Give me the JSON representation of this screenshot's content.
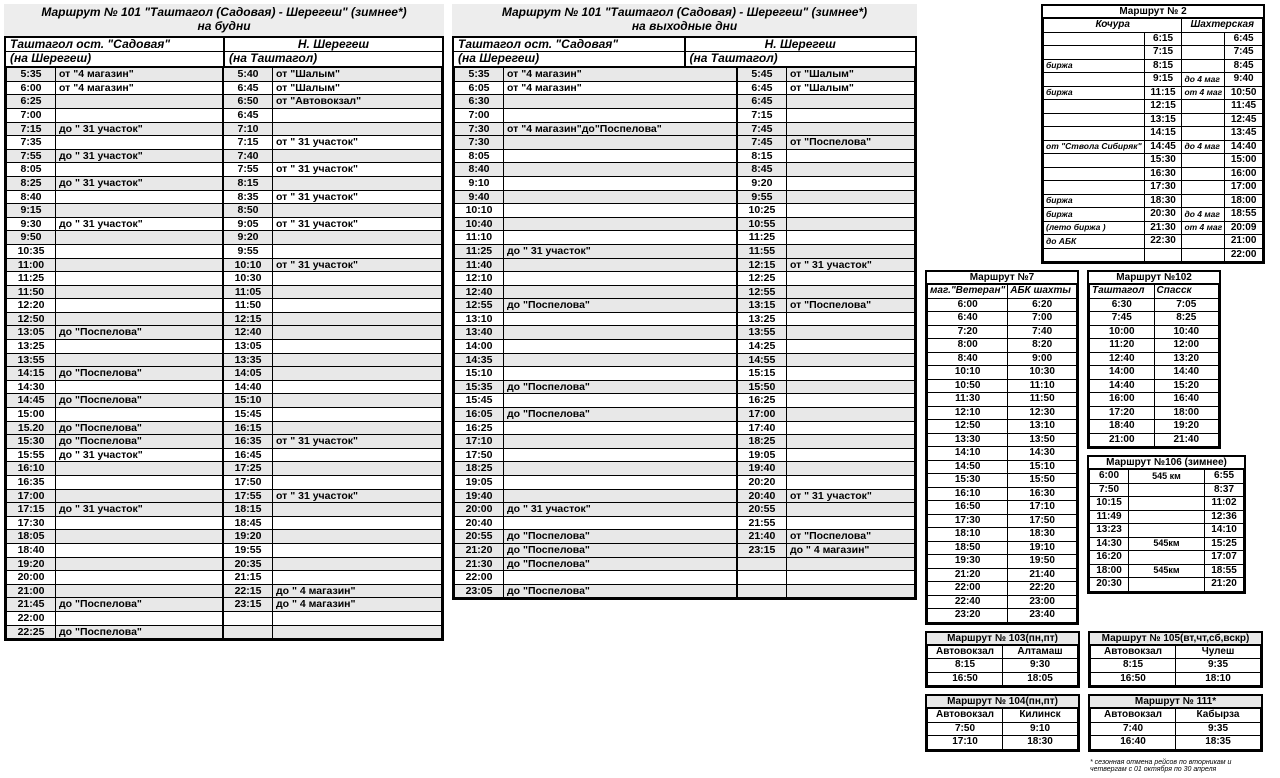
{
  "route101_weekday": {
    "title": "Маршрут № 101 \"Таштагол (Садовая) - Шерегеш\" (зимнее*)\nна будни",
    "left_head1": "Таштагол ост. \"Садовая\"",
    "left_head2": "(на Шерегеш)",
    "right_head1": "Н. Шерегеш",
    "right_head2": "(на Таштагол)",
    "rows": [
      {
        "lt": "5:35",
        "ln": "от \"4 магазин\"",
        "rt": "5:40",
        "rn": "от \"Шалым\"",
        "sh": true
      },
      {
        "lt": "6:00",
        "ln": "от \"4 магазин\"",
        "rt": "6:45",
        "rn": "от \"Шалым\"",
        "sh": false
      },
      {
        "lt": "6:25",
        "ln": "",
        "rt": "6:50",
        "rn": "от \"Автовокзал\"",
        "sh": true
      },
      {
        "lt": "7:00",
        "ln": "",
        "rt": "6:45",
        "rn": "",
        "sh": false
      },
      {
        "lt": "7:15",
        "ln": "до \" 31 участок\"",
        "rt": "7:10",
        "rn": "",
        "sh": true
      },
      {
        "lt": "7:35",
        "ln": "",
        "rt": "7:15",
        "rn": "от \" 31 участок\"",
        "sh": false
      },
      {
        "lt": "7:55",
        "ln": "до \" 31 участок\"",
        "rt": "7:40",
        "rn": "",
        "sh": true
      },
      {
        "lt": "8:05",
        "ln": "",
        "rt": "7:55",
        "rn": "от \" 31 участок\"",
        "sh": false
      },
      {
        "lt": "8:25",
        "ln": "до \" 31 участок\"",
        "rt": "8:15",
        "rn": "",
        "sh": true
      },
      {
        "lt": "8:40",
        "ln": "",
        "rt": "8:35",
        "rn": "от \" 31 участок\"",
        "sh": false
      },
      {
        "lt": "9:15",
        "ln": "",
        "rt": "8:50",
        "rn": "",
        "sh": true
      },
      {
        "lt": "9:30",
        "ln": "до \" 31 участок\"",
        "rt": "9:05",
        "rn": "от \" 31 участок\"",
        "sh": false
      },
      {
        "lt": "9:50",
        "ln": "",
        "rt": "9:20",
        "rn": "",
        "sh": true
      },
      {
        "lt": "10:35",
        "ln": "",
        "rt": "9:55",
        "rn": "",
        "sh": false
      },
      {
        "lt": "11:00",
        "ln": "",
        "rt": "10:10",
        "rn": "от \" 31 участок\"",
        "sh": true
      },
      {
        "lt": "11:25",
        "ln": "",
        "rt": "10:30",
        "rn": "",
        "sh": false
      },
      {
        "lt": "11:50",
        "ln": "",
        "rt": "11:05",
        "rn": "",
        "sh": true
      },
      {
        "lt": "12:20",
        "ln": "",
        "rt": "11:50",
        "rn": "",
        "sh": false
      },
      {
        "lt": "12:50",
        "ln": "",
        "rt": "12:15",
        "rn": "",
        "sh": true
      },
      {
        "lt": "13:05",
        "ln": "до \"Поспелова\"",
        "rt": "12:40",
        "rn": "",
        "sh": true
      },
      {
        "lt": "13:25",
        "ln": "",
        "rt": "13:05",
        "rn": "",
        "sh": false
      },
      {
        "lt": "13:55",
        "ln": "",
        "rt": "13:35",
        "rn": "",
        "sh": true
      },
      {
        "lt": "14:15",
        "ln": "до \"Поспелова\"",
        "rt": "14:05",
        "rn": "",
        "sh": true
      },
      {
        "lt": "14:30",
        "ln": "",
        "rt": "14:40",
        "rn": "",
        "sh": false
      },
      {
        "lt": "14:45",
        "ln": "до \"Поспелова\"",
        "rt": "15:10",
        "rn": "",
        "sh": true
      },
      {
        "lt": "15:00",
        "ln": "",
        "rt": "15:45",
        "rn": "",
        "sh": false
      },
      {
        "lt": "15.20",
        "ln": "до \"Поспелова\"",
        "rt": "16:15",
        "rn": "",
        "sh": true
      },
      {
        "lt": "15:30",
        "ln": "до \"Поспелова\"",
        "rt": "16:35",
        "rn": "от \" 31 участок\"",
        "sh": true
      },
      {
        "lt": "15:55",
        "ln": "до \" 31 участок\"",
        "rt": "16:45",
        "rn": "",
        "sh": false
      },
      {
        "lt": "16:10",
        "ln": "",
        "rt": "17:25",
        "rn": "",
        "sh": true
      },
      {
        "lt": "16:35",
        "ln": "",
        "rt": "17:50",
        "rn": "",
        "sh": false
      },
      {
        "lt": "17:00",
        "ln": "",
        "rt": "17:55",
        "rn": "от \" 31 участок\"",
        "sh": true
      },
      {
        "lt": "17:15",
        "ln": "до \" 31 участок\"",
        "rt": "18:15",
        "rn": "",
        "sh": true
      },
      {
        "lt": "17:30",
        "ln": "",
        "rt": "18:45",
        "rn": "",
        "sh": false
      },
      {
        "lt": "18:05",
        "ln": "",
        "rt": "19:20",
        "rn": "",
        "sh": true
      },
      {
        "lt": "18:40",
        "ln": "",
        "rt": "19:55",
        "rn": "",
        "sh": false
      },
      {
        "lt": "19:20",
        "ln": "",
        "rt": "20:35",
        "rn": "",
        "sh": true
      },
      {
        "lt": "20:00",
        "ln": "",
        "rt": "21:15",
        "rn": "",
        "sh": false
      },
      {
        "lt": "21:00",
        "ln": "",
        "rt": "22:15",
        "rn": "до \" 4 магазин\"",
        "sh": true
      },
      {
        "lt": "21:45",
        "ln": "до \"Поспелова\"",
        "rt": "23:15",
        "rn": "до \" 4 магазин\"",
        "sh": true
      },
      {
        "lt": "22:00",
        "ln": "",
        "rt": "",
        "rn": "",
        "sh": false
      },
      {
        "lt": "22:25",
        "ln": "до \"Поспелова\"",
        "rt": "",
        "rn": "",
        "sh": true
      }
    ]
  },
  "route101_weekend": {
    "title": "Маршрут № 101 \"Таштагол (Садовая) - Шерегеш\" (зимнее*)\nна выходные дни",
    "left_head1": "Таштагол ост. \"Садовая\"",
    "left_head2": "(на Шерегеш)",
    "right_head1": "Н. Шерегеш",
    "right_head2": "(на Таштагол)",
    "rows": [
      {
        "lt": "5:35",
        "ln": "от \"4 магазин\"",
        "rt": "5:45",
        "rn": "от \"Шалым\"",
        "sh": true
      },
      {
        "lt": "6:05",
        "ln": "от \"4 магазин\"",
        "rt": "6:45",
        "rn": "от \"Шалым\"",
        "sh": false
      },
      {
        "lt": "6:30",
        "ln": "",
        "rt": "6:45",
        "rn": "",
        "sh": true
      },
      {
        "lt": "7:00",
        "ln": "",
        "rt": "7:15",
        "rn": "",
        "sh": false
      },
      {
        "lt": "7:30",
        "ln": "от \"4 магазин\"до\"Поспелова\"",
        "rt": "7:45",
        "rn": "",
        "sh": true
      },
      {
        "lt": "7:30",
        "ln": "",
        "rt": "7:45",
        "rn": "от \"Поспелова\"",
        "sh": true
      },
      {
        "lt": "8:05",
        "ln": "",
        "rt": "8:15",
        "rn": "",
        "sh": false
      },
      {
        "lt": "8:40",
        "ln": "",
        "rt": "8:45",
        "rn": "",
        "sh": true
      },
      {
        "lt": "9:10",
        "ln": "",
        "rt": "9:20",
        "rn": "",
        "sh": false
      },
      {
        "lt": "9:40",
        "ln": "",
        "rt": "9:55",
        "rn": "",
        "sh": true
      },
      {
        "lt": "10:10",
        "ln": "",
        "rt": "10:25",
        "rn": "",
        "sh": false
      },
      {
        "lt": "10:40",
        "ln": "",
        "rt": "10:55",
        "rn": "",
        "sh": true
      },
      {
        "lt": "11:10",
        "ln": "",
        "rt": "11:25",
        "rn": "",
        "sh": false
      },
      {
        "lt": "11:25",
        "ln": "до \" 31 участок\"",
        "rt": "11:55",
        "rn": "",
        "sh": true
      },
      {
        "lt": "11:40",
        "ln": "",
        "rt": "12:15",
        "rn": "от \" 31 участок\"",
        "sh": true
      },
      {
        "lt": "12:10",
        "ln": "",
        "rt": "12:25",
        "rn": "",
        "sh": false
      },
      {
        "lt": "12:40",
        "ln": "",
        "rt": "12:55",
        "rn": "",
        "sh": true
      },
      {
        "lt": "12:55",
        "ln": "до \"Поспелова\"",
        "rt": "13:15",
        "rn": "от \"Поспелова\"",
        "sh": true
      },
      {
        "lt": "13:10",
        "ln": "",
        "rt": "13:25",
        "rn": "",
        "sh": false
      },
      {
        "lt": "13:40",
        "ln": "",
        "rt": "13:55",
        "rn": "",
        "sh": true
      },
      {
        "lt": "14:00",
        "ln": "",
        "rt": "14:25",
        "rn": "",
        "sh": false
      },
      {
        "lt": "14:35",
        "ln": "",
        "rt": "14:55",
        "rn": "",
        "sh": true
      },
      {
        "lt": "15:10",
        "ln": "",
        "rt": "15:15",
        "rn": "",
        "sh": false
      },
      {
        "lt": "15:35",
        "ln": "до \"Поспелова\"",
        "rt": "15:50",
        "rn": "",
        "sh": true
      },
      {
        "lt": "15:45",
        "ln": "",
        "rt": "16:25",
        "rn": "",
        "sh": false
      },
      {
        "lt": "16:05",
        "ln": "до \"Поспелова\"",
        "rt": "17:00",
        "rn": "",
        "sh": true
      },
      {
        "lt": "16:25",
        "ln": "",
        "rt": "17:40",
        "rn": "",
        "sh": false
      },
      {
        "lt": "17:10",
        "ln": "",
        "rt": "18:25",
        "rn": "",
        "sh": true
      },
      {
        "lt": "17:50",
        "ln": "",
        "rt": "19:05",
        "rn": "",
        "sh": false
      },
      {
        "lt": "18:25",
        "ln": "",
        "rt": "19:40",
        "rn": "",
        "sh": true
      },
      {
        "lt": "19:05",
        "ln": "",
        "rt": "20:20",
        "rn": "",
        "sh": false
      },
      {
        "lt": "19:40",
        "ln": "",
        "rt": "20:40",
        "rn": "от \" 31 участок\"",
        "sh": true
      },
      {
        "lt": "20:00",
        "ln": "до \" 31 участок\"",
        "rt": "20:55",
        "rn": "",
        "sh": true
      },
      {
        "lt": "20:40",
        "ln": "",
        "rt": "21:55",
        "rn": "",
        "sh": false
      },
      {
        "lt": "20:55",
        "ln": "до \"Поспелова\"",
        "rt": "21:40",
        "rn": "от \"Поспелова\"",
        "sh": true
      },
      {
        "lt": "21:20",
        "ln": "до \"Поспелова\"",
        "rt": "23:15",
        "rn": "до \" 4 магазин\"",
        "sh": true
      },
      {
        "lt": "21:30",
        "ln": "до \"Поспелова\"",
        "rt": "",
        "rn": "",
        "sh": true
      },
      {
        "lt": "22:00",
        "ln": "",
        "rt": "",
        "rn": "",
        "sh": false
      },
      {
        "lt": "23:05",
        "ln": "до \"Поспелова\"",
        "rt": "",
        "rn": "",
        "sh": true
      }
    ]
  },
  "route2": {
    "title": "Маршрут № 2",
    "head_l": "Кочура",
    "head_r": "Шахтерская",
    "rows": [
      {
        "ln": "",
        "lt": "6:15",
        "rn": "",
        "rt": "6:45"
      },
      {
        "ln": "",
        "lt": "7:15",
        "rn": "",
        "rt": "7:45"
      },
      {
        "ln": "биржа",
        "lt": "8:15",
        "rn": "",
        "rt": "8:45"
      },
      {
        "ln": "",
        "lt": "9:15",
        "rn": "до 4 маг",
        "rt": "9:40"
      },
      {
        "ln": "биржа",
        "lt": "11:15",
        "rn": "от 4 маг",
        "rt": "10:50"
      },
      {
        "ln": "",
        "lt": "12:15",
        "rn": "",
        "rt": "11:45"
      },
      {
        "ln": "",
        "lt": "13:15",
        "rn": "",
        "rt": "12:45"
      },
      {
        "ln": "",
        "lt": "14:15",
        "rn": "",
        "rt": "13:45"
      },
      {
        "ln": "от \"Ствола Сибиряк\"",
        "lt": "14:45",
        "rn": "до 4 маг",
        "rt": "14:40"
      },
      {
        "ln": "",
        "lt": "15:30",
        "rn": "",
        "rt": "15:00"
      },
      {
        "ln": "",
        "lt": "16:30",
        "rn": "",
        "rt": "16:00"
      },
      {
        "ln": "",
        "lt": "17:30",
        "rn": "",
        "rt": "17:00"
      },
      {
        "ln": "биржа",
        "lt": "18:30",
        "rn": "",
        "rt": "18:00"
      },
      {
        "ln": "биржа",
        "lt": "20:30",
        "rn": "до 4 маг",
        "rt": "18:55"
      },
      {
        "ln": "(лето биржа )",
        "lt": "21:30",
        "rn": "от 4 маг",
        "rt": "20:09"
      },
      {
        "ln": "до АБК",
        "lt": "22:30",
        "rn": "",
        "rt": "21:00"
      },
      {
        "ln": "",
        "lt": "",
        "rn": "",
        "rt": "22:00"
      }
    ]
  },
  "route7": {
    "title": "Маршрут №7",
    "head_l": "маг.\"Ветеран\"",
    "head_r": "АБК  шахты",
    "rows": [
      [
        "6:00",
        "6:20"
      ],
      [
        "6:40",
        "7:00"
      ],
      [
        "7:20",
        "7:40"
      ],
      [
        "8:00",
        "8:20"
      ],
      [
        "8:40",
        "9:00"
      ],
      [
        "10:10",
        "10:30"
      ],
      [
        "10:50",
        "11:10"
      ],
      [
        "11:30",
        "11:50"
      ],
      [
        "12:10",
        "12:30"
      ],
      [
        "12:50",
        "13:10"
      ],
      [
        "13:30",
        "13:50"
      ],
      [
        "14:10",
        "14:30"
      ],
      [
        "14:50",
        "15:10"
      ],
      [
        "15:30",
        "15:50"
      ],
      [
        "16:10",
        "16:30"
      ],
      [
        "16:50",
        "17:10"
      ],
      [
        "17:30",
        "17:50"
      ],
      [
        "18:10",
        "18:30"
      ],
      [
        "18:50",
        "19:10"
      ],
      [
        "19:30",
        "19:50"
      ],
      [
        "21:20",
        "21:40"
      ],
      [
        "22:00",
        "22:20"
      ],
      [
        "22:40",
        "23:00"
      ],
      [
        "23:20",
        "23:40"
      ]
    ]
  },
  "route102": {
    "title": "Маршрут №102",
    "head_l": "Таштагол",
    "head_r": "Спасск",
    "rows": [
      [
        "6:30",
        "7:05"
      ],
      [
        "7:45",
        "8:25"
      ],
      [
        "10:00",
        "10:40"
      ],
      [
        "11:20",
        "12:00"
      ],
      [
        "12:40",
        "13:20"
      ],
      [
        "14:00",
        "14:40"
      ],
      [
        "14:40",
        "15:20"
      ],
      [
        "16:00",
        "16:40"
      ],
      [
        "17:20",
        "18:00"
      ],
      [
        "18:40",
        "19:20"
      ],
      [
        "21:00",
        "21:40"
      ]
    ]
  },
  "route106": {
    "title": "Маршрут №106 (зимнее)",
    "rows": [
      [
        "6:00",
        "545 км",
        "6:55"
      ],
      [
        "7:50",
        "",
        "8:37"
      ],
      [
        "10:15",
        "",
        "11:02"
      ],
      [
        "11:49",
        "",
        "12:36"
      ],
      [
        "13:23",
        "",
        "14:10"
      ],
      [
        "14:30",
        "545км",
        "15:25"
      ],
      [
        "16:20",
        "",
        "17:07"
      ],
      [
        "18:00",
        "545км",
        "18:55"
      ],
      [
        "20:30",
        "",
        "21:20"
      ]
    ]
  },
  "route103": {
    "title": "Маршрут № 103(пн,пт)",
    "head_l": "Автовокзал",
    "head_r": "Алтамаш",
    "rows": [
      [
        "8:15",
        "9:30"
      ],
      [
        "16:50",
        "18:05"
      ]
    ]
  },
  "route104": {
    "title": "Маршрут № 104(пн,пт)",
    "head_l": "Автовокзал",
    "head_r": "Килинск",
    "rows": [
      [
        "7:50",
        "9:10"
      ],
      [
        "17:10",
        "18:30"
      ]
    ]
  },
  "route105": {
    "title": "Маршрут № 105(вт,чт,сб,вскр)",
    "head_l": "Автовокзал",
    "head_r": "Чулеш",
    "rows": [
      [
        "8:15",
        "9:35"
      ],
      [
        "16:50",
        "18:10"
      ]
    ]
  },
  "route111": {
    "title": "Маршрут № 111*",
    "head_l": "Автовокзал",
    "head_r": "Кабырза",
    "rows": [
      [
        "7:40",
        "9:35"
      ],
      [
        "16:40",
        "18:35"
      ]
    ]
  },
  "footnote": "* сезонная отмена рейсов по вторникам и четвергам с 01 октября по 30 апреля"
}
